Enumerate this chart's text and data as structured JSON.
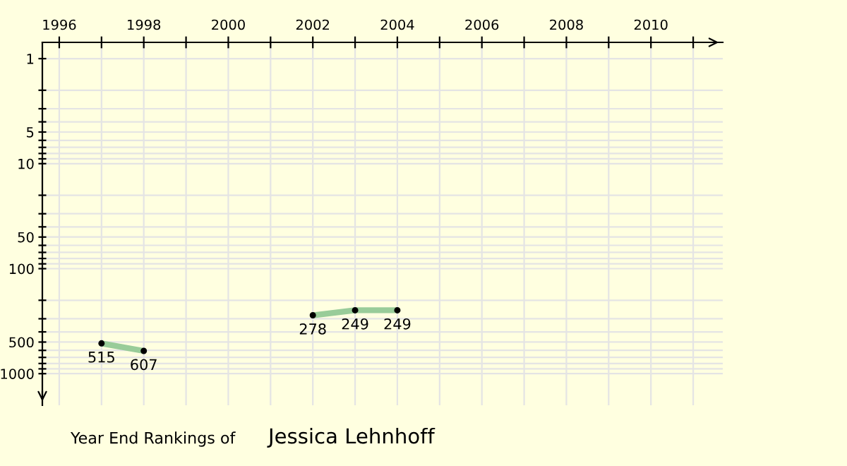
{
  "chart_data": {
    "type": "line",
    "title": "Year End Rankings of",
    "subtitle": "Jessica Lehnhoff",
    "x": [
      1997,
      1998,
      2002,
      2003,
      2004
    ],
    "series": [
      {
        "color": "#99cc99",
        "values": [
          515,
          607,
          278,
          249,
          249
        ]
      }
    ],
    "data_labels": true,
    "marker": "circle",
    "line_style": "solid",
    "log": true,
    "grid": true,
    "xlim": [
      1995.6,
      2011.7
    ],
    "ylim": [
      2000,
      0.7
    ],
    "xticks": [
      1996,
      {
        "value": 1997,
        "label": null
      },
      1998,
      {
        "value": 1999,
        "label": null
      },
      2000,
      {
        "value": 2001,
        "label": null
      },
      2002,
      {
        "value": 2003,
        "label": null
      },
      2004,
      {
        "value": 2005,
        "label": null
      },
      2006,
      {
        "value": 2007,
        "label": null
      },
      2008,
      {
        "value": 2009,
        "label": null
      },
      2010,
      {
        "value": 2011,
        "label": null
      }
    ],
    "yticks": [
      1,
      {
        "value": 2,
        "label": null
      },
      {
        "value": 3,
        "label": null
      },
      {
        "value": 4,
        "label": null
      },
      5,
      {
        "value": 6,
        "label": null
      },
      {
        "value": 7,
        "label": null
      },
      {
        "value": 8,
        "label": null
      },
      {
        "value": 9,
        "label": null
      },
      10,
      {
        "value": 20,
        "label": null
      },
      {
        "value": 30,
        "label": null
      },
      {
        "value": 40,
        "label": null
      },
      50,
      {
        "value": 60,
        "label": null
      },
      {
        "value": 70,
        "label": null
      },
      {
        "value": 80,
        "label": null
      },
      {
        "value": 90,
        "label": null
      },
      100,
      {
        "value": 200,
        "label": null
      },
      {
        "value": 300,
        "label": null
      },
      {
        "value": 400,
        "label": null
      },
      500,
      {
        "value": 600,
        "label": null
      },
      {
        "value": 700,
        "label": null
      },
      {
        "value": 800,
        "label": null
      },
      {
        "value": 900,
        "label": null
      },
      1000
    ]
  }
}
